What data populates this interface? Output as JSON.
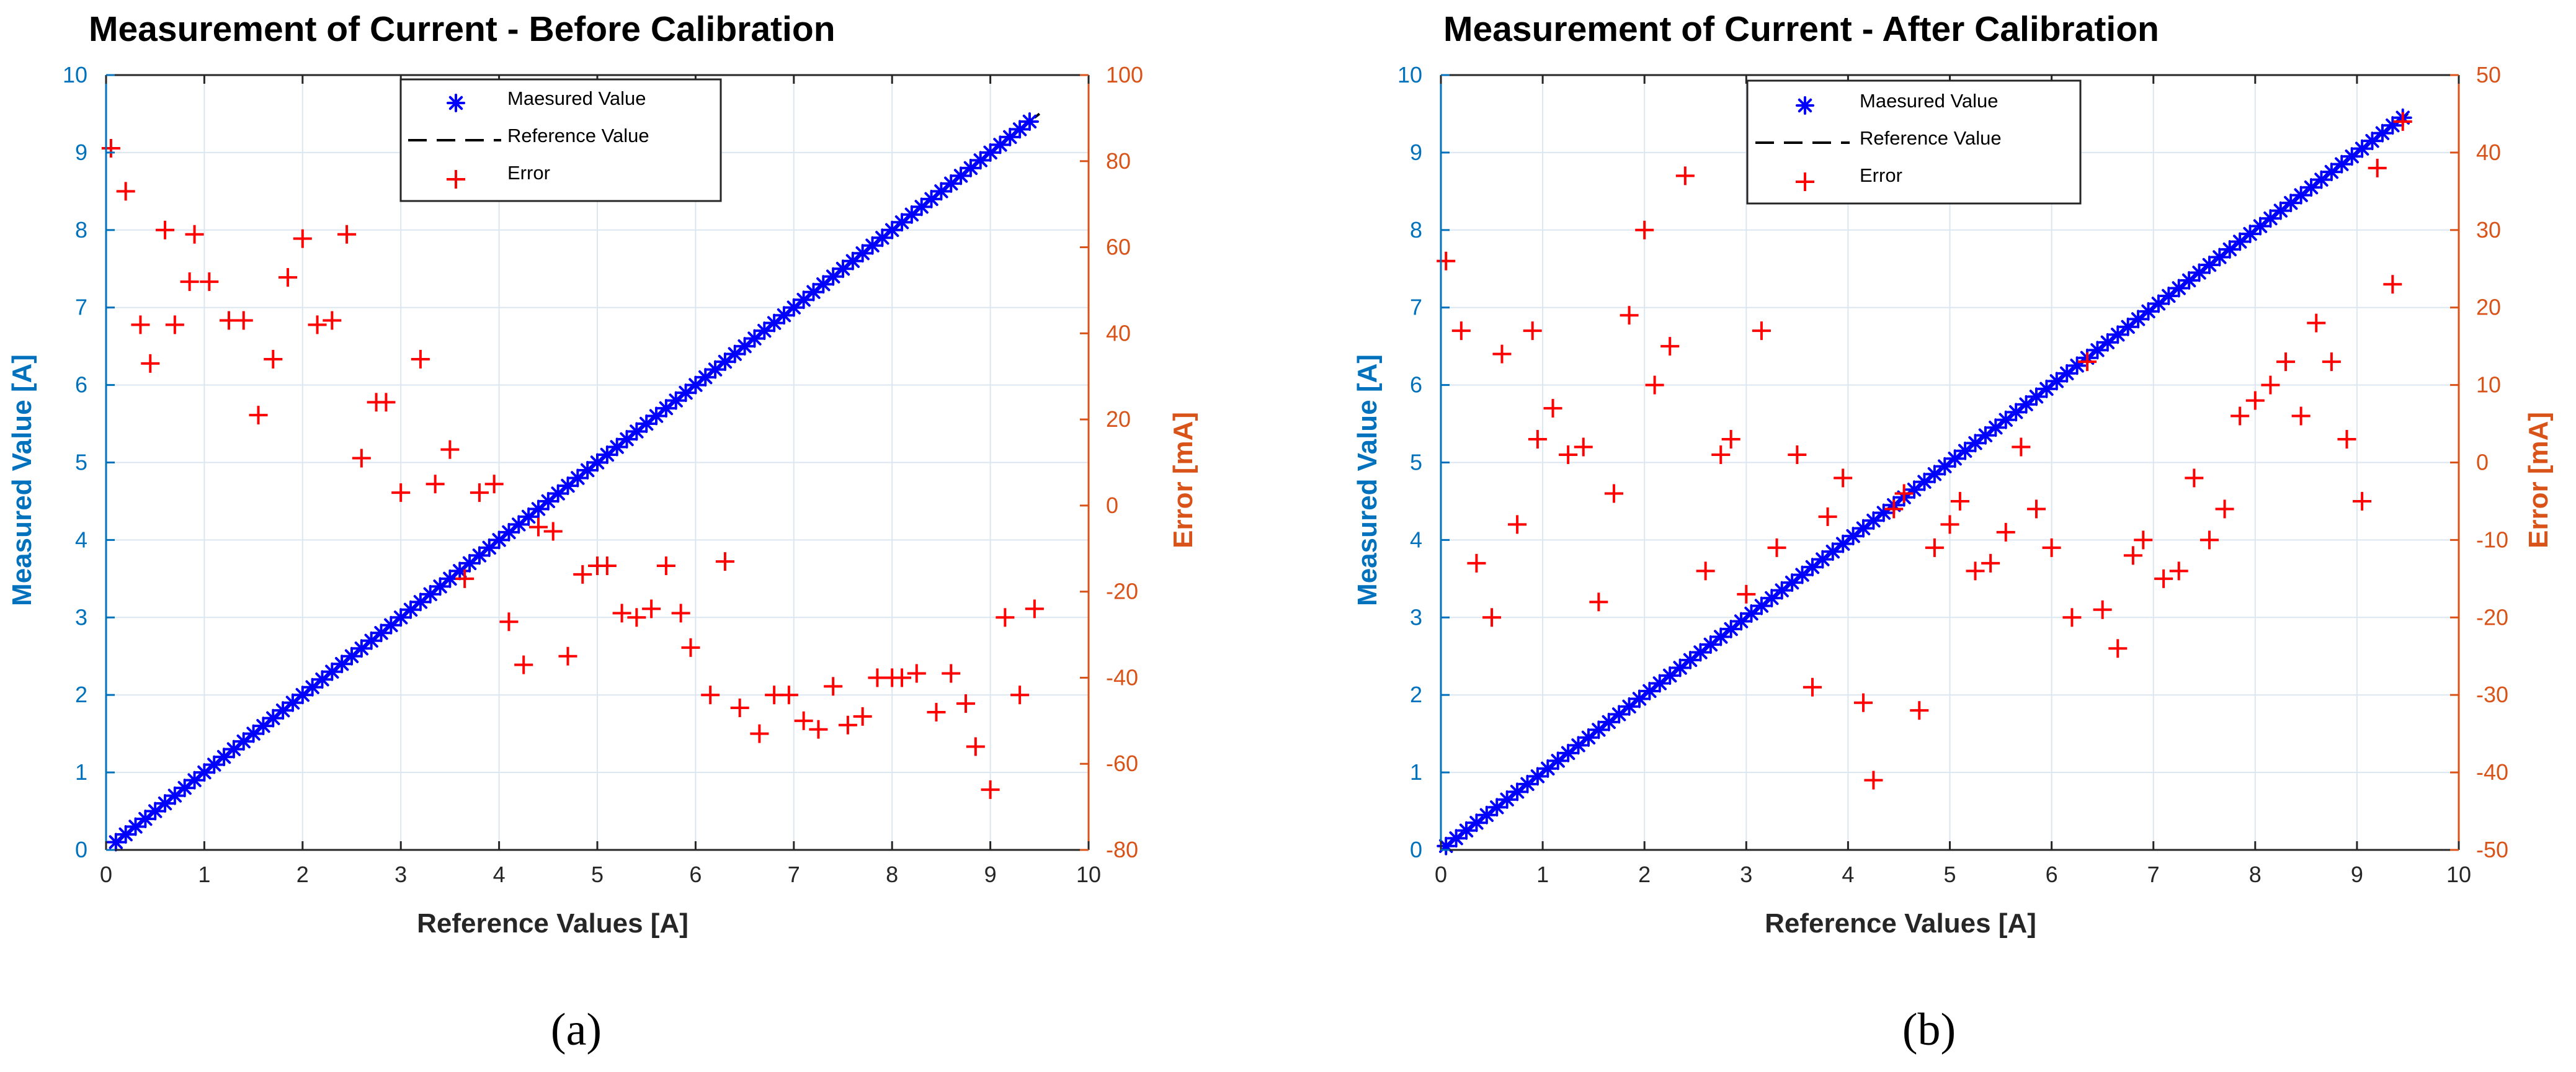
{
  "figure": {
    "captions": [
      "(a)",
      "(b)"
    ],
    "colors": {
      "measured": "#0000FF",
      "reference": "#000000",
      "error": "#FF0000",
      "left_axis": "#0072BD",
      "right_axis": "#D95319",
      "grid": "#DCE6F0"
    }
  },
  "chart_data": [
    {
      "type": "scatter",
      "title": "Measurement of Current - Before Calibration",
      "xlabel": "Reference Values [A]",
      "ylabel": "Measured Value [A]",
      "ylabel_right": "Error [mA]",
      "xlim": [
        0,
        10
      ],
      "ylim": [
        0,
        10
      ],
      "ylim_right": [
        -80,
        100
      ],
      "xticks": [
        0,
        1,
        2,
        3,
        4,
        5,
        6,
        7,
        8,
        9,
        10
      ],
      "yticks": [
        0,
        1,
        2,
        3,
        4,
        5,
        6,
        7,
        8,
        9,
        10
      ],
      "yticks_right": [
        -80,
        -60,
        -40,
        -20,
        0,
        20,
        40,
        60,
        80,
        100
      ],
      "grid": true,
      "legend": [
        "Maesured Value",
        "Reference Value",
        "Error"
      ],
      "legend_position": "top-center",
      "series": [
        {
          "name": "Maesured Value",
          "marker": "asterisk",
          "axis": "left",
          "x_start": 0.1,
          "x_step": 0.1,
          "count": 94,
          "relation": "y = x"
        },
        {
          "name": "Reference Value",
          "style": "dashed",
          "axis": "left",
          "x": [
            0.1,
            9.5
          ],
          "y": [
            0.1,
            9.5
          ]
        },
        {
          "name": "Error",
          "marker": "plus",
          "axis": "right",
          "x": [
            0.05,
            0.2,
            0.35,
            0.45,
            0.6,
            0.7,
            0.85,
            0.9,
            1.05,
            1.25,
            1.4,
            1.55,
            1.7,
            1.85,
            2.0,
            2.15,
            2.3,
            2.45,
            2.6,
            2.75,
            2.85,
            3.0,
            3.2,
            3.35,
            3.5,
            3.65,
            3.8,
            3.95,
            4.1,
            4.25,
            4.4,
            4.55,
            4.7,
            4.85,
            5.0,
            5.1,
            5.25,
            5.4,
            5.55,
            5.7,
            5.85,
            5.95,
            6.15,
            6.3,
            6.45,
            6.65,
            6.8,
            6.95,
            7.1,
            7.25,
            7.4,
            7.55,
            7.7,
            7.85,
            8.0,
            8.1,
            8.25,
            8.45,
            8.6,
            8.75,
            8.85,
            9.0,
            9.15,
            9.3,
            9.45
          ],
          "y": [
            83,
            73,
            42,
            33,
            64,
            42,
            52,
            63,
            52,
            43,
            43,
            21,
            34,
            53,
            62,
            42,
            43,
            63,
            11,
            24,
            24,
            3,
            34,
            5,
            13,
            -17,
            3,
            5,
            -27,
            -37,
            -5,
            -6,
            -35,
            -16,
            -14,
            -14,
            -25,
            -26,
            -24,
            -14,
            -25,
            -33,
            -44,
            -13,
            -47,
            -53,
            -44,
            -44,
            -50,
            -52,
            -42,
            -51,
            -49,
            -40,
            -40,
            -40,
            -39,
            -48,
            -39,
            -46,
            -56,
            -66,
            -26,
            -44,
            -24
          ]
        }
      ]
    },
    {
      "type": "scatter",
      "title": "Measurement of Current - After Calibration",
      "xlabel": "Reference Values [A]",
      "ylabel": "Measured Value [A]",
      "ylabel_right": "Error [mA]",
      "xlim": [
        0,
        10
      ],
      "ylim": [
        0,
        10
      ],
      "ylim_right": [
        -50,
        50
      ],
      "xticks": [
        0,
        1,
        2,
        3,
        4,
        5,
        6,
        7,
        8,
        9,
        10
      ],
      "yticks": [
        0,
        1,
        2,
        3,
        4,
        5,
        6,
        7,
        8,
        9,
        10
      ],
      "yticks_right": [
        -50,
        -40,
        -30,
        -20,
        -10,
        0,
        10,
        20,
        30,
        40,
        50
      ],
      "grid": true,
      "legend": [
        "Maesured Value",
        "Reference Value",
        "Error"
      ],
      "legend_position": "top-center",
      "series": [
        {
          "name": "Maesured Value",
          "marker": "asterisk",
          "axis": "left",
          "x_start": 0.05,
          "x_step": 0.1,
          "count": 95,
          "relation": "y = x"
        },
        {
          "name": "Reference Value",
          "style": "dashed",
          "axis": "left",
          "x": [
            0.05,
            9.5
          ],
          "y": [
            0.05,
            9.5
          ]
        },
        {
          "name": "Error",
          "marker": "plus",
          "axis": "right",
          "x": [
            0.05,
            0.2,
            0.35,
            0.5,
            0.6,
            0.75,
            0.9,
            0.95,
            1.1,
            1.25,
            1.4,
            1.55,
            1.7,
            1.85,
            2.0,
            2.1,
            2.25,
            2.4,
            2.6,
            2.75,
            2.85,
            3.0,
            3.15,
            3.3,
            3.5,
            3.65,
            3.8,
            3.95,
            4.15,
            4.25,
            4.45,
            4.55,
            4.7,
            4.85,
            5.0,
            5.1,
            5.25,
            5.4,
            5.55,
            5.7,
            5.85,
            6.0,
            6.2,
            6.35,
            6.5,
            6.65,
            6.8,
            6.9,
            7.1,
            7.25,
            7.4,
            7.55,
            7.7,
            7.85,
            8.0,
            8.15,
            8.3,
            8.45,
            8.6,
            8.75,
            8.9,
            9.05,
            9.2,
            9.35,
            9.45
          ],
          "y": [
            26,
            17,
            -13,
            -20,
            14,
            -8,
            17,
            3,
            7,
            1,
            2,
            -18,
            -4,
            19,
            30,
            10,
            15,
            37,
            -14,
            1,
            3,
            -17,
            17,
            -11,
            1,
            -29,
            -7,
            -2,
            -31,
            -41,
            -6,
            -4,
            -32,
            -11,
            -8,
            -5,
            -14,
            -13,
            -9,
            2,
            -6,
            -11,
            -20,
            13,
            -19,
            -24,
            -12,
            -10,
            -15,
            -14,
            -2,
            -10,
            -6,
            6,
            8,
            10,
            13,
            6,
            18,
            13,
            3,
            -5,
            38,
            23,
            44
          ]
        }
      ]
    }
  ]
}
